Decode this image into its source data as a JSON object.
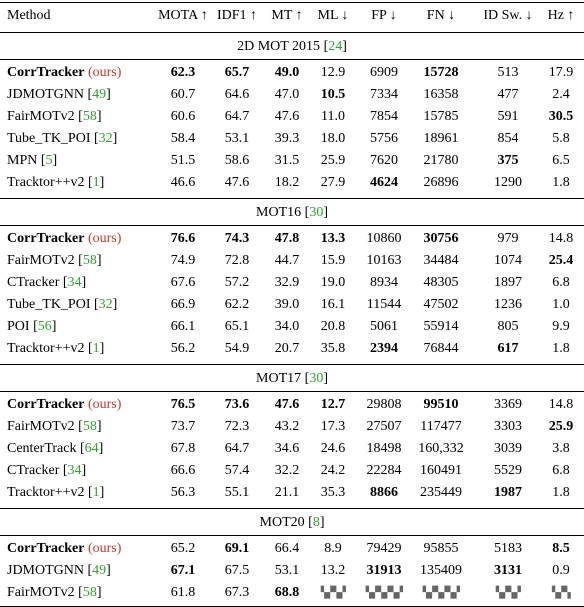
{
  "columns": [
    "Method",
    "MOTA ↑",
    "IDF1 ↑",
    "MT ↑",
    "ML ↓",
    "FP ↓",
    "FN ↓",
    "ID Sw. ↓",
    "Hz ↑"
  ],
  "sections": [
    {
      "title": "2D MOT 2015",
      "cite": "24",
      "rows": [
        {
          "name": "CorrTracker",
          "cite": "",
          "ours": "(ours)",
          "bold_name": true,
          "values": [
            "62.3",
            "65.7",
            "49.0",
            "12.9",
            "6909",
            "15728",
            "513",
            "17.9"
          ],
          "bold": [
            true,
            true,
            true,
            false,
            false,
            true,
            false,
            false
          ]
        },
        {
          "name": "JDMOTGNN",
          "cite": "49",
          "values": [
            "60.7",
            "64.6",
            "47.0",
            "10.5",
            "7334",
            "16358",
            "477",
            "2.4"
          ],
          "bold": [
            false,
            false,
            false,
            true,
            false,
            false,
            false,
            false
          ]
        },
        {
          "name": "FairMOTv2",
          "cite": "58",
          "values": [
            "60.6",
            "64.7",
            "47.6",
            "11.0",
            "7854",
            "15785",
            "591",
            "30.5"
          ],
          "bold": [
            false,
            false,
            false,
            false,
            false,
            false,
            false,
            true
          ]
        },
        {
          "name": "Tube_TK_POI",
          "cite": "32",
          "values": [
            "58.4",
            "53.1",
            "39.3",
            "18.0",
            "5756",
            "18961",
            "854",
            "5.8"
          ],
          "bold": [
            false,
            false,
            false,
            false,
            false,
            false,
            false,
            false
          ]
        },
        {
          "name": "MPN",
          "cite": "5",
          "values": [
            "51.5",
            "58.6",
            "31.5",
            "25.9",
            "7620",
            "21780",
            "375",
            "6.5"
          ],
          "bold": [
            false,
            false,
            false,
            false,
            false,
            false,
            true,
            false
          ]
        },
        {
          "name": "Tracktor++v2",
          "cite": "1",
          "values": [
            "46.6",
            "47.6",
            "18.2",
            "27.9",
            "4624",
            "26896",
            "1290",
            "1.8"
          ],
          "bold": [
            false,
            false,
            false,
            false,
            true,
            false,
            false,
            false
          ]
        }
      ]
    },
    {
      "title": "MOT16",
      "cite": "30",
      "rows": [
        {
          "name": "CorrTracker",
          "cite": "",
          "ours": "(ours)",
          "bold_name": true,
          "values": [
            "76.6",
            "74.3",
            "47.8",
            "13.3",
            "10860",
            "30756",
            "979",
            "14.8"
          ],
          "bold": [
            true,
            true,
            true,
            true,
            false,
            true,
            false,
            false
          ]
        },
        {
          "name": "FairMOTv2",
          "cite": "58",
          "values": [
            "74.9",
            "72.8",
            "44.7",
            "15.9",
            "10163",
            "34484",
            "1074",
            "25.4"
          ],
          "bold": [
            false,
            false,
            false,
            false,
            false,
            false,
            false,
            true
          ]
        },
        {
          "name": "CTracker",
          "cite": "34",
          "values": [
            "67.6",
            "57.2",
            "32.9",
            "19.0",
            "8934",
            "48305",
            "1897",
            "6.8"
          ],
          "bold": [
            false,
            false,
            false,
            false,
            false,
            false,
            false,
            false
          ]
        },
        {
          "name": "Tube_TK_POI",
          "cite": "32",
          "values": [
            "66.9",
            "62.2",
            "39.0",
            "16.1",
            "11544",
            "47502",
            "1236",
            "1.0"
          ],
          "bold": [
            false,
            false,
            false,
            false,
            false,
            false,
            false,
            false
          ]
        },
        {
          "name": "POI",
          "cite": "56",
          "values": [
            "66.1",
            "65.1",
            "34.0",
            "20.8",
            "5061",
            "55914",
            "805",
            "9.9"
          ],
          "bold": [
            false,
            false,
            false,
            false,
            false,
            false,
            false,
            false
          ]
        },
        {
          "name": "Tracktor++v2",
          "cite": "1",
          "values": [
            "56.2",
            "54.9",
            "20.7",
            "35.8",
            "2394",
            "76844",
            "617",
            "1.8"
          ],
          "bold": [
            false,
            false,
            false,
            false,
            true,
            false,
            true,
            false
          ]
        }
      ]
    },
    {
      "title": "MOT17",
      "cite": "30",
      "rows": [
        {
          "name": "CorrTracker",
          "cite": "",
          "ours": "(ours)",
          "bold_name": true,
          "values": [
            "76.5",
            "73.6",
            "47.6",
            "12.7",
            "29808",
            "99510",
            "3369",
            "14.8"
          ],
          "bold": [
            true,
            true,
            true,
            true,
            false,
            true,
            false,
            false
          ]
        },
        {
          "name": "FairMOTv2",
          "cite": "58",
          "values": [
            "73.7",
            "72.3",
            "43.2",
            "17.3",
            "27507",
            "117477",
            "3303",
            "25.9"
          ],
          "bold": [
            false,
            false,
            false,
            false,
            false,
            false,
            false,
            true
          ]
        },
        {
          "name": "CenterTrack",
          "cite": "64",
          "values": [
            "67.8",
            "64.7",
            "34.6",
            "24.6",
            "18498",
            "160,332",
            "3039",
            "3.8"
          ],
          "bold": [
            false,
            false,
            false,
            false,
            false,
            false,
            false,
            false
          ]
        },
        {
          "name": "CTracker",
          "cite": "34",
          "values": [
            "66.6",
            "57.4",
            "32.2",
            "24.2",
            "22284",
            "160491",
            "5529",
            "6.8"
          ],
          "bold": [
            false,
            false,
            false,
            false,
            false,
            false,
            false,
            false
          ]
        },
        {
          "name": "Tracktor++v2",
          "cite": "1",
          "values": [
            "56.3",
            "55.1",
            "21.1",
            "35.3",
            "8866",
            "235449",
            "1987",
            "1.8"
          ],
          "bold": [
            false,
            false,
            false,
            false,
            true,
            false,
            true,
            false
          ]
        }
      ]
    },
    {
      "title": "MOT20",
      "cite": "8",
      "rows": [
        {
          "name": "CorrTracker",
          "cite": "",
          "ours": "(ours)",
          "bold_name": true,
          "values": [
            "65.2",
            "69.1",
            "66.4",
            "8.9",
            "79429",
            "95855",
            "5183",
            "8.5"
          ],
          "bold": [
            false,
            true,
            false,
            false,
            false,
            false,
            false,
            true
          ]
        },
        {
          "name": "JDMOTGNN",
          "cite": "49",
          "values": [
            "67.1",
            "67.5",
            "53.1",
            "13.2",
            "31913",
            "135409",
            "3131",
            "0.9"
          ],
          "bold": [
            true,
            false,
            false,
            false,
            true,
            false,
            true,
            false
          ]
        },
        {
          "name": "FairMOTv2",
          "cite": "58",
          "values": [
            "61.8",
            "67.3",
            "68.8",
            "▚▞▚▞",
            "▚▞▚▞▚▞",
            "▚▞▚▞▚▞",
            "▚▞▚▞",
            "▚▞▚"
          ],
          "bold": [
            false,
            false,
            true,
            false,
            false,
            false,
            false,
            false
          ],
          "garbled_from": 3
        }
      ]
    }
  ]
}
